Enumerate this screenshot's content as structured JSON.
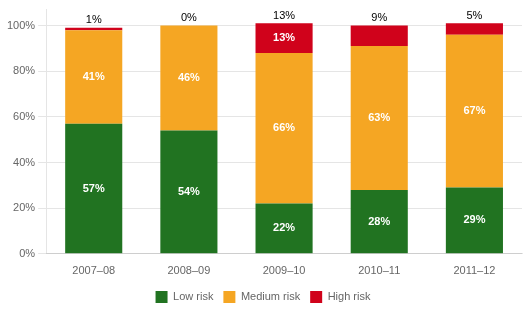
{
  "chart_data": {
    "type": "bar",
    "stacked": true,
    "categories": [
      "2007–08",
      "2008–09",
      "2009–10",
      "2010–11",
      "2011–12"
    ],
    "series": [
      {
        "name": "Low risk",
        "color": "#217321",
        "values": [
          57,
          54,
          22,
          28,
          29
        ],
        "value_labels": [
          "57%",
          "54%",
          "22%",
          "28%",
          "29%"
        ]
      },
      {
        "name": "Medium risk",
        "color": "#F5A623",
        "values": [
          41,
          46,
          66,
          63,
          67
        ],
        "value_labels": [
          "41%",
          "46%",
          "66%",
          "63%",
          "67%"
        ]
      },
      {
        "name": "High risk",
        "color": "#D0021B",
        "values": [
          1,
          0,
          13,
          9,
          5
        ],
        "value_labels": [
          null,
          null,
          "13%",
          null,
          null
        ]
      }
    ],
    "annotations": [
      {
        "x": "2007–08",
        "text": "1%"
      },
      {
        "x": "2008–09",
        "text": "0%"
      },
      {
        "x": "2009–10",
        "text": "13%"
      },
      {
        "x": "2010–11",
        "text": "9%"
      },
      {
        "x": "2011–12",
        "text": "5%"
      }
    ],
    "data_labels": true,
    "ylim": [
      0,
      107
    ],
    "yticks": [
      {
        "value": 0,
        "label": "0%"
      },
      {
        "value": 20,
        "label": "20%"
      },
      {
        "value": 40,
        "label": "40%"
      },
      {
        "value": 60,
        "label": "60%"
      },
      {
        "value": 80,
        "label": "80%"
      },
      {
        "value": 100,
        "label": "100%"
      }
    ],
    "grid": true,
    "legend": "bottom"
  }
}
